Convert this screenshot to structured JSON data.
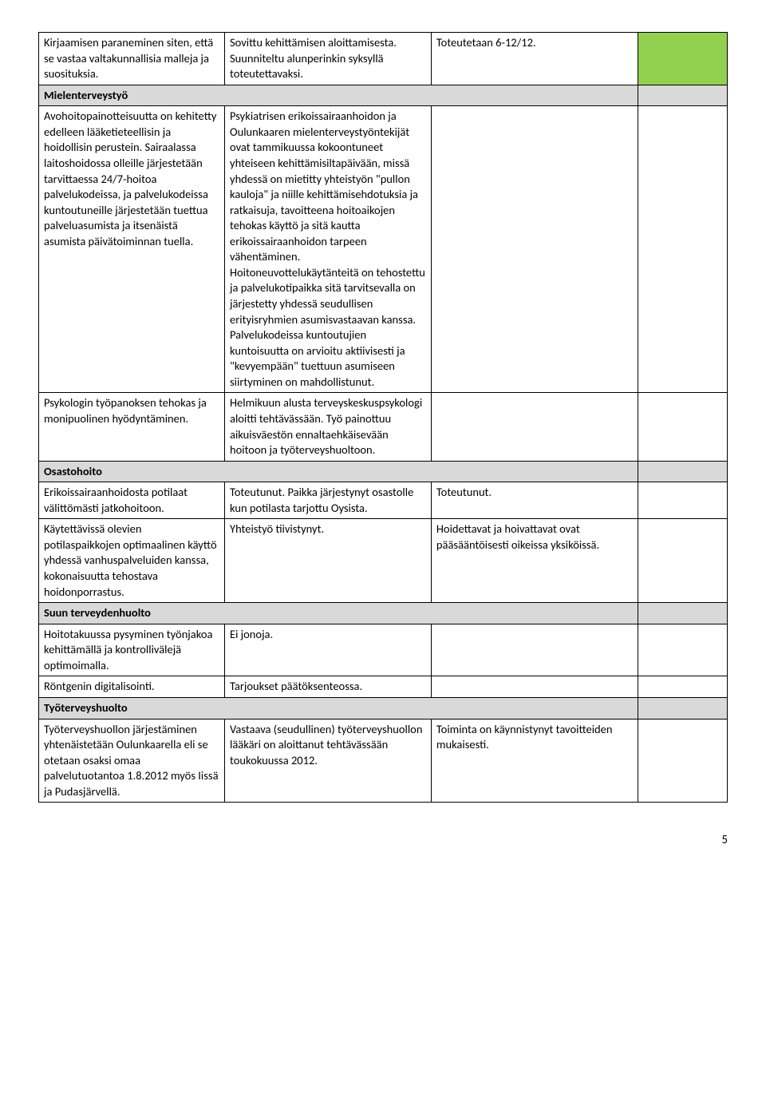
{
  "rows": [
    {
      "type": "data",
      "status": "green",
      "c1": "Kirjaamisen paraneminen siten, että se vastaa valtakunnallisia malleja ja suosituksia.",
      "c2": "Sovittu kehittämisen aloittamisesta. Suunniteltu alunperinkin syksyllä toteutettavaksi.",
      "c3": "Toteutetaan 6-12/12."
    },
    {
      "type": "section",
      "label": "Mielenterveystyö"
    },
    {
      "type": "data",
      "status": "",
      "c1": "Avohoitopainotteisuutta on kehitetty edelleen lääketieteellisin ja hoidollisin perustein. Sairaalassa laitoshoidossa olleille järjestetään tarvittaessa 24/7-hoitoa palvelukodeissa, ja palvelukodeissa kuntoutuneille järjestetään tuettua palveluasumista ja itsenäistä asumista päivätoiminnan tuella.",
      "c2": "Psykiatrisen erikoissairaanhoidon ja Oulunkaaren mielenterveystyöntekijät ovat tammikuussa kokoontuneet yhteiseen kehittämisiltapäivään, missä yhdessä on mietitty yhteistyön \"pullon kauloja\" ja niille kehittämisehdotuksia ja ratkaisuja, tavoitteena hoitoaikojen tehokas käyttö ja sitä kautta erikoissairaanhoidon tarpeen vähentäminen. Hoitoneuvottelukäytänteitä on tehostettu ja palvelukotipaikka sitä tarvitsevalla on järjestetty yhdessä seudullisen erityisryhmien asumisvastaavan kanssa. Palvelukodeissa kuntoutujien kuntoisuutta on arvioitu aktiivisesti ja \"kevyempään\" tuettuun asumiseen siirtyminen on mahdollistunut.",
      "c3": ""
    },
    {
      "type": "data",
      "status": "",
      "c1": "Psykologin työpanoksen tehokas ja monipuolinen hyödyntäminen.",
      "c2": "Helmikuun alusta terveyskeskuspsykologi aloitti tehtävässään. Työ painottuu aikuisväestön ennaltaehkäisevään hoitoon ja työterveyshuoltoon.",
      "c3": ""
    },
    {
      "type": "section",
      "label": "Osastohoito"
    },
    {
      "type": "data",
      "status": "",
      "c1": "Erikoissairaanhoidosta potilaat välittömästi jatkohoitoon.",
      "c2": "Toteutunut. Paikka järjestynyt osastolle kun potilasta tarjottu Oysista.",
      "c3": "Toteutunut."
    },
    {
      "type": "data",
      "status": "",
      "c1": "Käytettävissä olevien potilaspaikkojen optimaalinen käyttö yhdessä vanhuspalveluiden kanssa, kokonaisuutta tehostava hoidonporrastus.",
      "c2": "Yhteistyö tiivistynyt.",
      "c3": "Hoidettavat ja hoivattavat ovat pääsääntöisesti oikeissa yksiköissä."
    },
    {
      "type": "section",
      "label": "Suun terveydenhuolto"
    },
    {
      "type": "data",
      "status": "",
      "c1": "Hoitotakuussa pysyminen työnjakoa kehittämällä ja kontrollivälejä optimoimalla.",
      "c2": "Ei jonoja.",
      "c3": ""
    },
    {
      "type": "data",
      "status": "",
      "c1": "Röntgenin digitalisointi.",
      "c2": "Tarjoukset päätöksenteossa.",
      "c3": ""
    },
    {
      "type": "section",
      "label": "Työterveyshuolto"
    },
    {
      "type": "data",
      "status": "",
      "c1": "Työterveyshuollon järjestäminen yhtenäistetään Oulunkaarella eli se otetaan osaksi omaa palvelutuotantoa 1.8.2012 myös Iissä ja Pudasjärvellä.",
      "c2": "Vastaava (seudullinen) työterveyshuollon lääkäri on aloittanut tehtävässään toukokuussa 2012.",
      "c3": "Toiminta on käynnistynyt tavoitteiden mukaisesti."
    }
  ],
  "pageNumber": "5",
  "colors": {
    "statusGreen": "#92d050",
    "sectionGrey": "#d9d9d9",
    "border": "#000000",
    "background": "#ffffff"
  }
}
